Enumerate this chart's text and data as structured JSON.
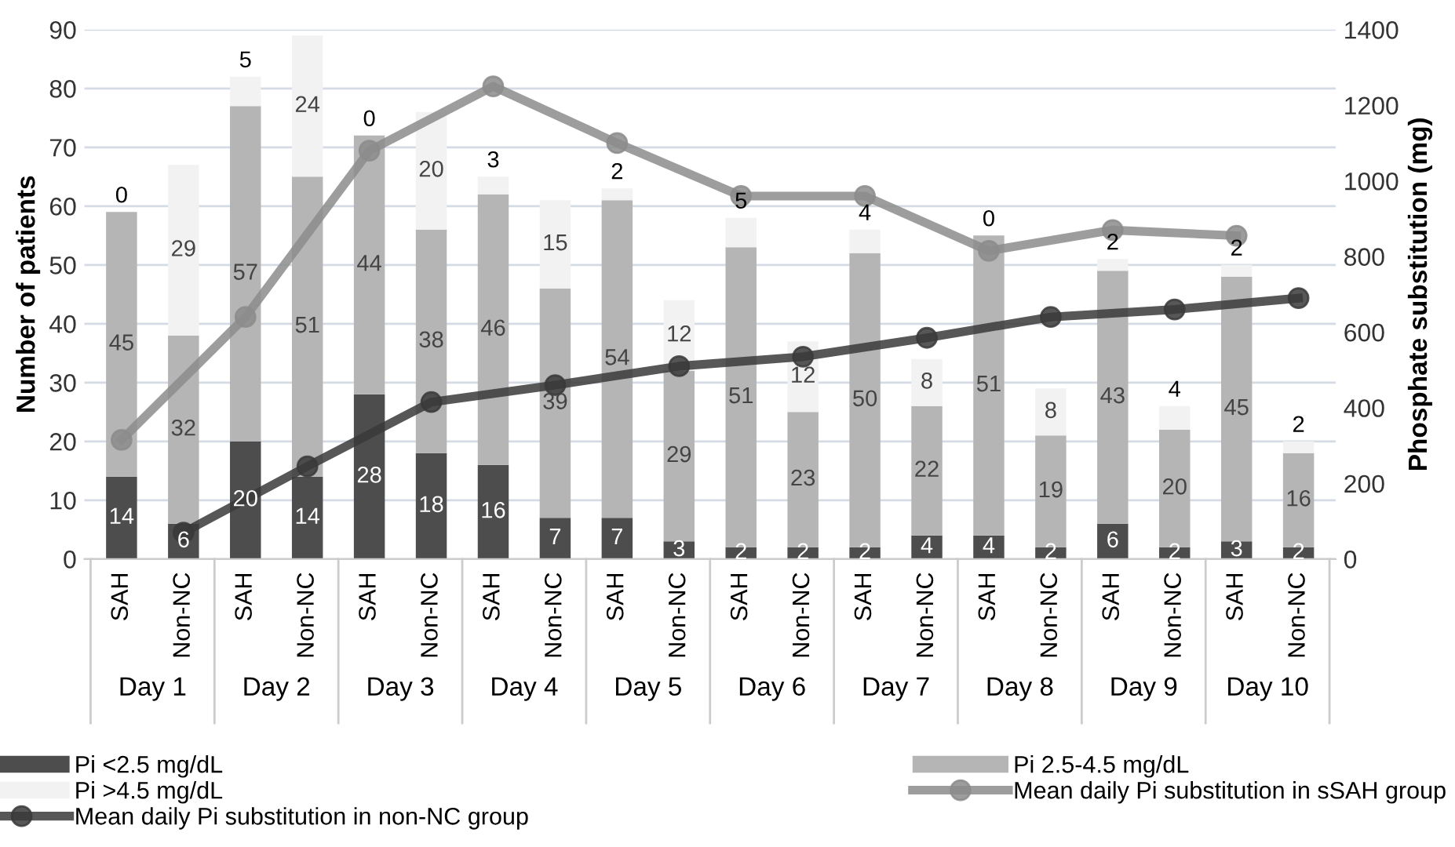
{
  "chart_data": {
    "type": "bar",
    "stacked": true,
    "ylabel": "Number of patients",
    "y2label": "Phosphate substitution (mg)",
    "categories": [
      "SAH",
      "Non-NC",
      "SAH",
      "Non-NC",
      "SAH",
      "Non-NC",
      "SAH",
      "Non-NC",
      "SAH",
      "Non-NC",
      "SAH",
      "Non-NC",
      "SAH",
      "Non-NC",
      "SAH",
      "Non-NC",
      "SAH",
      "Non-NC",
      "SAH",
      "Non-NC"
    ],
    "annotations": [
      "Day 1",
      "Day 2",
      "Day 3",
      "Day 4",
      "Day 5",
      "Day 6",
      "Day 7",
      "Day 8",
      "Day 9",
      "Day 10"
    ],
    "series": [
      {
        "name": "Pi <2.5 mg/dL",
        "color": "#4d4d4d",
        "values": [
          14,
          6,
          20,
          14,
          28,
          18,
          16,
          7,
          7,
          3,
          2,
          2,
          2,
          4,
          4,
          2,
          6,
          2,
          3,
          2
        ],
        "value_labels": [
          "14",
          "6",
          "20",
          "14",
          "28",
          "18",
          "16",
          "7",
          "7",
          "3",
          "2",
          "2",
          "2",
          "4",
          "4",
          "2",
          "6",
          "2",
          "3",
          "2"
        ]
      },
      {
        "name": "Pi 2.5-4.5 mg/dL",
        "color": "#b5b5b5",
        "values": [
          45,
          32,
          57,
          51,
          44,
          38,
          46,
          39,
          54,
          29,
          51,
          23,
          50,
          22,
          51,
          19,
          43,
          20,
          45,
          16
        ],
        "value_labels": [
          "45",
          "32",
          "57",
          "51",
          "44",
          "38",
          "46",
          "39",
          "54",
          "29",
          "51",
          "23",
          "50",
          "22",
          "51",
          "19",
          "43",
          "20",
          "45",
          "16"
        ]
      },
      {
        "name": "Pi >4.5 mg/dL",
        "color": "#f2f2f2",
        "values": [
          0,
          29,
          5,
          24,
          0,
          20,
          3,
          15,
          2,
          12,
          5,
          12,
          4,
          8,
          0,
          8,
          2,
          4,
          2,
          2
        ],
        "value_labels": [
          "0",
          "29",
          "5",
          "24",
          "0",
          "20",
          "3",
          "15",
          "2",
          "12",
          "5",
          "12",
          "4",
          "8",
          "0",
          "8",
          "2",
          "4",
          "2",
          "2"
        ]
      },
      {
        "name": "Mean daily Pi substitution in sSAH group",
        "type": "line",
        "axis": "y2",
        "color": "#8c8c8c",
        "marker": "circle",
        "values": [
          315,
          null,
          640,
          null,
          1080,
          null,
          1250,
          null,
          1100,
          null,
          960,
          null,
          960,
          null,
          815,
          null,
          870,
          null,
          855,
          null
        ]
      },
      {
        "name": "Mean daily Pi substitution in non-NC group",
        "type": "line",
        "axis": "y2",
        "color": "#3a3a3a",
        "marker": "circle",
        "values": [
          null,
          70,
          null,
          245,
          null,
          415,
          null,
          460,
          null,
          510,
          null,
          535,
          null,
          585,
          null,
          640,
          null,
          660,
          null,
          690
        ]
      }
    ],
    "ylim": [
      0,
      90
    ],
    "yticks": [
      0,
      10,
      20,
      30,
      40,
      50,
      60,
      70,
      80,
      90
    ],
    "y2lim": [
      0,
      1400
    ],
    "y2ticks": [
      0,
      200,
      400,
      600,
      800,
      1000,
      1200,
      1400
    ],
    "grid": "y",
    "legend": "bottom"
  }
}
